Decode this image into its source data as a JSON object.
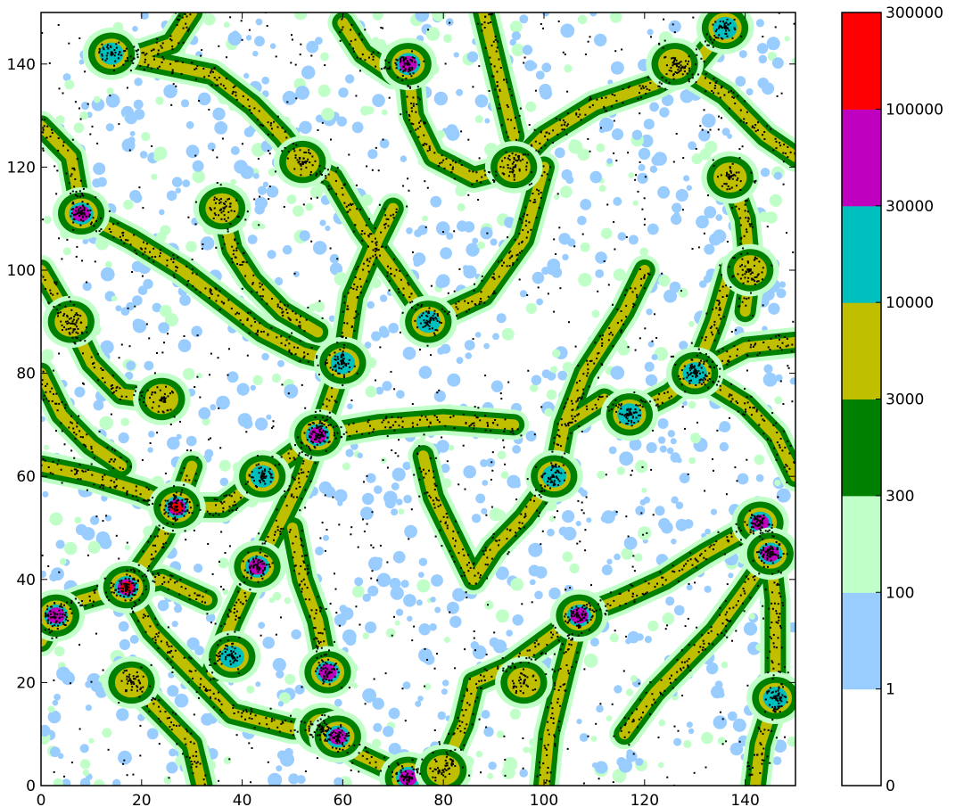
{
  "chart_data": {
    "type": "heatmap",
    "title": "",
    "xlabel": "",
    "ylabel": "",
    "xlim": [
      0,
      150
    ],
    "ylim": [
      0,
      150
    ],
    "xticks": [
      0,
      20,
      40,
      60,
      80,
      100,
      120,
      140
    ],
    "yticks": [
      0,
      20,
      40,
      60,
      80,
      100,
      120,
      140
    ],
    "grid": false,
    "colorbar": {
      "levels": [
        0,
        1,
        100,
        300,
        3000,
        10000,
        30000,
        100000,
        300000
      ],
      "labels": [
        "0",
        "1",
        "100",
        "300",
        "3000",
        "10000",
        "30000",
        "100000",
        "300000"
      ],
      "colors": [
        "#ffffff",
        "#99ccff",
        "#c0ffc8",
        "#008000",
        "#bfbf00",
        "#00bfbf",
        "#bf00bf",
        "#ff0000"
      ]
    },
    "points_color": "#000000",
    "clusters": [
      {
        "x": 17,
        "y": 38.5,
        "level": 7
      },
      {
        "x": 27,
        "y": 54,
        "level": 7
      },
      {
        "x": 8,
        "y": 111,
        "level": 6
      },
      {
        "x": 73,
        "y": 140,
        "level": 6
      },
      {
        "x": 43,
        "y": 42.5,
        "level": 6
      },
      {
        "x": 55,
        "y": 68,
        "level": 6
      },
      {
        "x": 57,
        "y": 22,
        "level": 6
      },
      {
        "x": 56,
        "y": 11,
        "level": 6
      },
      {
        "x": 59,
        "y": 9.5,
        "level": 6
      },
      {
        "x": 107,
        "y": 33,
        "level": 6
      },
      {
        "x": 143,
        "y": 51,
        "level": 6
      },
      {
        "x": 145,
        "y": 45,
        "level": 6
      },
      {
        "x": 3,
        "y": 33,
        "level": 6
      },
      {
        "x": 146,
        "y": 17,
        "level": 5
      },
      {
        "x": 130,
        "y": 80,
        "level": 5
      },
      {
        "x": 117,
        "y": 72,
        "level": 5
      },
      {
        "x": 60,
        "y": 82,
        "level": 5
      },
      {
        "x": 77,
        "y": 90,
        "level": 5
      },
      {
        "x": 14,
        "y": 142,
        "level": 5
      },
      {
        "x": 136,
        "y": 147,
        "level": 5
      },
      {
        "x": 73,
        "y": 1.5,
        "level": 6
      },
      {
        "x": 102,
        "y": 60,
        "level": 5
      },
      {
        "x": 44,
        "y": 60,
        "level": 5
      },
      {
        "x": 36,
        "y": 112,
        "level": 4
      },
      {
        "x": 24,
        "y": 75,
        "level": 4
      },
      {
        "x": 52,
        "y": 121,
        "level": 4
      },
      {
        "x": 94,
        "y": 120,
        "level": 4
      },
      {
        "x": 141,
        "y": 100,
        "level": 4
      },
      {
        "x": 80,
        "y": 3,
        "level": 4
      },
      {
        "x": 38,
        "y": 25,
        "level": 5
      },
      {
        "x": 96,
        "y": 20,
        "level": 4
      },
      {
        "x": 6,
        "y": 90,
        "level": 4
      },
      {
        "x": 18,
        "y": 20,
        "level": 4
      },
      {
        "x": 137,
        "y": 118,
        "level": 4
      },
      {
        "x": 126,
        "y": 140,
        "level": 4
      }
    ],
    "filaments": [
      [
        [
          0,
          33
        ],
        [
          8,
          36
        ],
        [
          17,
          38.5
        ],
        [
          24,
          40
        ],
        [
          33,
          36
        ]
      ],
      [
        [
          17,
          38.5
        ],
        [
          24,
          48
        ],
        [
          27,
          54
        ],
        [
          30,
          62
        ]
      ],
      [
        [
          27,
          54
        ],
        [
          36,
          54
        ],
        [
          44,
          60
        ],
        [
          55,
          68
        ],
        [
          60,
          82
        ],
        [
          62,
          95
        ]
      ],
      [
        [
          0,
          62
        ],
        [
          10,
          60
        ],
        [
          20,
          57
        ],
        [
          27,
          54
        ]
      ],
      [
        [
          43,
          42.5
        ],
        [
          48,
          52
        ],
        [
          52,
          60
        ],
        [
          55,
          68
        ]
      ],
      [
        [
          55,
          68
        ],
        [
          67,
          70
        ],
        [
          80,
          71
        ],
        [
          94,
          70
        ]
      ],
      [
        [
          17,
          38.5
        ],
        [
          22,
          30
        ],
        [
          30,
          22
        ],
        [
          38,
          14
        ],
        [
          50,
          11
        ],
        [
          56,
          11
        ],
        [
          63,
          6
        ],
        [
          73,
          1.5
        ]
      ],
      [
        [
          57,
          22
        ],
        [
          55,
          32
        ],
        [
          52,
          40
        ],
        [
          50,
          50
        ]
      ],
      [
        [
          43,
          42.5
        ],
        [
          38,
          32
        ],
        [
          34,
          22
        ]
      ],
      [
        [
          107,
          33
        ],
        [
          100,
          28
        ],
        [
          93,
          23
        ],
        [
          86,
          20
        ]
      ],
      [
        [
          107,
          33
        ],
        [
          115,
          36
        ],
        [
          124,
          40
        ],
        [
          132,
          45
        ],
        [
          143,
          51
        ]
      ],
      [
        [
          107,
          33
        ],
        [
          104,
          22
        ],
        [
          101,
          10
        ],
        [
          100,
          0
        ]
      ],
      [
        [
          102,
          60
        ],
        [
          104,
          70
        ],
        [
          112,
          75
        ],
        [
          117,
          72
        ],
        [
          125,
          76
        ],
        [
          130,
          80
        ],
        [
          140,
          85
        ],
        [
          150,
          86
        ]
      ],
      [
        [
          77,
          90
        ],
        [
          70,
          100
        ],
        [
          64,
          108
        ],
        [
          58,
          118
        ],
        [
          52,
          121
        ]
      ],
      [
        [
          77,
          90
        ],
        [
          88,
          95
        ],
        [
          96,
          106
        ],
        [
          100,
          120
        ]
      ],
      [
        [
          94,
          120
        ],
        [
          100,
          126
        ],
        [
          110,
          132
        ],
        [
          122,
          136
        ],
        [
          130,
          140
        ],
        [
          136,
          147
        ]
      ],
      [
        [
          73,
          140
        ],
        [
          74,
          130
        ],
        [
          78,
          122
        ],
        [
          86,
          118
        ],
        [
          94,
          120
        ]
      ],
      [
        [
          8,
          111
        ],
        [
          18,
          106
        ],
        [
          28,
          100
        ],
        [
          36,
          94
        ],
        [
          44,
          88
        ],
        [
          52,
          84
        ],
        [
          60,
          82
        ]
      ],
      [
        [
          14,
          142
        ],
        [
          24,
          140
        ],
        [
          34,
          138
        ],
        [
          42,
          132
        ],
        [
          48,
          126
        ],
        [
          52,
          121
        ]
      ],
      [
        [
          0,
          100
        ],
        [
          6,
          90
        ],
        [
          10,
          82
        ],
        [
          16,
          76
        ],
        [
          24,
          75
        ]
      ],
      [
        [
          36,
          112
        ],
        [
          38,
          104
        ],
        [
          42,
          98
        ],
        [
          48,
          92
        ],
        [
          55,
          88
        ]
      ],
      [
        [
          143,
          51
        ],
        [
          145,
          45
        ],
        [
          146,
          36
        ],
        [
          146,
          26
        ],
        [
          146,
          17
        ],
        [
          143,
          8
        ],
        [
          142,
          0
        ]
      ],
      [
        [
          137,
          118
        ],
        [
          140,
          110
        ],
        [
          141,
          100
        ],
        [
          140,
          92
        ]
      ],
      [
        [
          130,
          80
        ],
        [
          134,
          90
        ],
        [
          137,
          100
        ]
      ],
      [
        [
          0,
          128
        ],
        [
          6,
          122
        ],
        [
          8,
          111
        ]
      ],
      [
        [
          102,
          60
        ],
        [
          96,
          52
        ],
        [
          90,
          46
        ],
        [
          86,
          40
        ]
      ],
      [
        [
          3,
          33
        ],
        [
          0,
          28
        ]
      ],
      [
        [
          80,
          3
        ],
        [
          84,
          12
        ],
        [
          86,
          20
        ]
      ],
      [
        [
          18,
          20
        ],
        [
          24,
          14
        ],
        [
          30,
          8
        ],
        [
          32,
          0
        ]
      ],
      [
        [
          126,
          140
        ],
        [
          136,
          134
        ],
        [
          144,
          126
        ],
        [
          150,
          122
        ]
      ],
      [
        [
          62,
          95
        ],
        [
          66,
          104
        ],
        [
          70,
          112
        ]
      ],
      [
        [
          86,
          40
        ],
        [
          82,
          48
        ],
        [
          78,
          56
        ],
        [
          76,
          64
        ]
      ],
      [
        [
          150,
          60
        ],
        [
          146,
          68
        ],
        [
          140,
          74
        ],
        [
          130,
          80
        ]
      ],
      [
        [
          0,
          80
        ],
        [
          4,
          72
        ],
        [
          10,
          66
        ],
        [
          16,
          62
        ]
      ],
      [
        [
          120,
          100
        ],
        [
          116,
          92
        ],
        [
          112,
          86
        ],
        [
          108,
          80
        ],
        [
          104,
          70
        ]
      ],
      [
        [
          116,
          10
        ],
        [
          122,
          18
        ],
        [
          128,
          24
        ],
        [
          134,
          30
        ],
        [
          140,
          38
        ],
        [
          145,
          45
        ]
      ],
      [
        [
          60,
          148
        ],
        [
          64,
          142
        ],
        [
          70,
          138
        ],
        [
          73,
          140
        ]
      ],
      [
        [
          88,
          150
        ],
        [
          90,
          142
        ],
        [
          92,
          134
        ],
        [
          94,
          126
        ]
      ],
      [
        [
          30,
          150
        ],
        [
          26,
          144
        ],
        [
          20,
          142
        ],
        [
          14,
          142
        ]
      ]
    ]
  }
}
